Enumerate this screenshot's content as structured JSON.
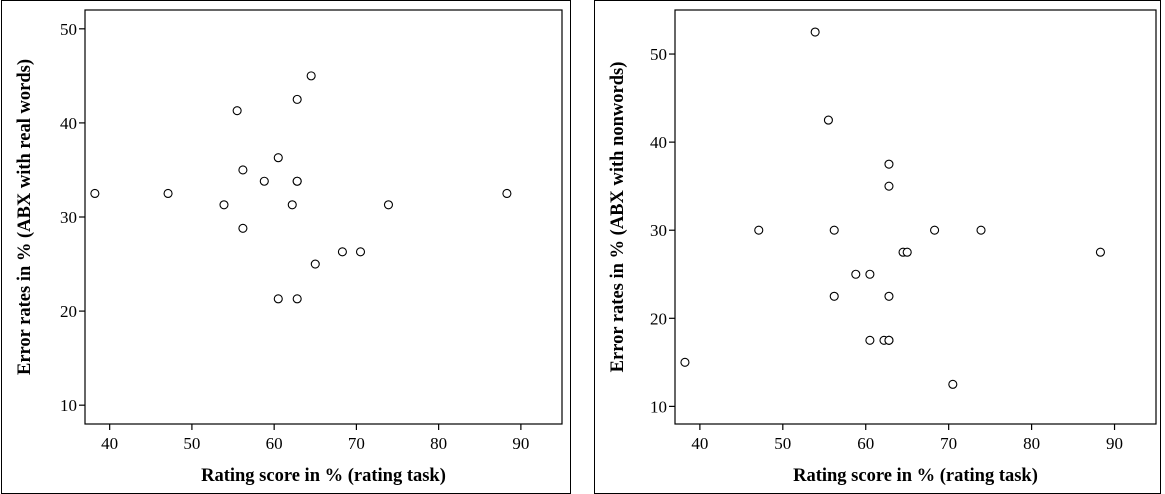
{
  "chart_data": [
    {
      "type": "scatter",
      "xlabel": "Rating score in % (rating task)",
      "ylabel": "Error rates in % (ABX with real words)",
      "xlim": [
        37,
        95
      ],
      "ylim": [
        8,
        52
      ],
      "xticks": [
        40,
        50,
        60,
        70,
        80,
        90
      ],
      "yticks": [
        10,
        20,
        30,
        40,
        50
      ],
      "grid": false,
      "x": [
        38.2,
        47.1,
        53.9,
        55.5,
        56.2,
        56.2,
        58.8,
        60.5,
        60.5,
        62.2,
        62.8,
        62.8,
        62.8,
        62.8,
        64.5,
        65.0,
        68.3,
        70.5,
        73.9,
        88.3
      ],
      "y": [
        32.5,
        32.5,
        31.3,
        41.3,
        35.0,
        28.8,
        33.8,
        36.3,
        21.3,
        31.3,
        33.8,
        33.8,
        42.5,
        21.3,
        45.0,
        25.0,
        26.3,
        26.3,
        31.3,
        32.5
      ]
    },
    {
      "type": "scatter",
      "xlabel": "Rating score in % (rating task)",
      "ylabel": "Error rates in % (ABX with nonwords)",
      "xlim": [
        37,
        95
      ],
      "ylim": [
        8,
        55
      ],
      "xticks": [
        40,
        50,
        60,
        70,
        80,
        90
      ],
      "yticks": [
        10,
        20,
        30,
        40,
        50
      ],
      "grid": false,
      "x": [
        38.2,
        47.1,
        53.9,
        55.5,
        56.2,
        56.2,
        58.8,
        60.5,
        60.5,
        62.2,
        62.8,
        62.8,
        62.8,
        62.8,
        62.8,
        64.5,
        65.0,
        68.3,
        70.5,
        73.9,
        88.3
      ],
      "y": [
        15.0,
        30.0,
        52.5,
        42.5,
        30.0,
        22.5,
        25.0,
        25.0,
        17.5,
        17.5,
        17.5,
        22.5,
        35.0,
        37.5,
        17.5,
        27.5,
        27.5,
        30.0,
        12.5,
        30.0,
        27.5
      ]
    }
  ]
}
